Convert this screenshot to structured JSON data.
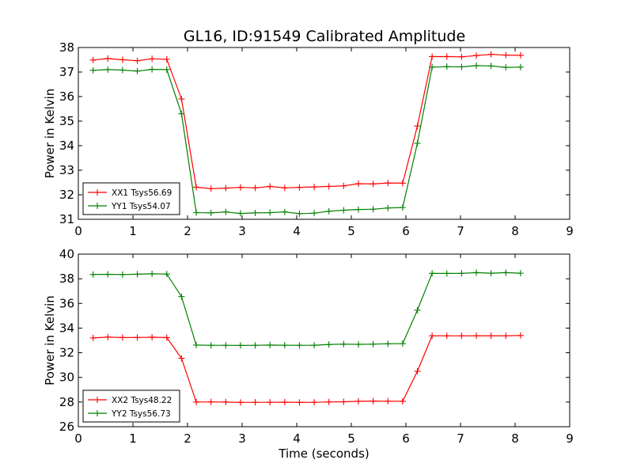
{
  "figure": {
    "title": "GL16, ID:91549 Calibrated Amplitude"
  },
  "chart_data": [
    {
      "type": "line",
      "title": "GL16, ID:91549 Calibrated Amplitude",
      "xlabel": "",
      "ylabel": "Power in Kelvin",
      "xlim": [
        0,
        9
      ],
      "ylim": [
        31,
        38
      ],
      "xticks": [
        0,
        1,
        2,
        3,
        4,
        5,
        6,
        7,
        8,
        9
      ],
      "yticks": [
        31,
        32,
        33,
        34,
        35,
        36,
        37,
        38
      ],
      "grid": false,
      "legend_position": "lower-left",
      "x": [
        0.27,
        0.54,
        0.81,
        1.08,
        1.35,
        1.62,
        1.89,
        2.16,
        2.43,
        2.7,
        2.97,
        3.24,
        3.51,
        3.78,
        4.05,
        4.32,
        4.59,
        4.86,
        5.13,
        5.4,
        5.67,
        5.94,
        6.21,
        6.48,
        6.75,
        7.02,
        7.29,
        7.56,
        7.83,
        8.1
      ],
      "series": [
        {
          "name": "XX1 Tsys56.69",
          "color": "#ff0000",
          "values": [
            37.49,
            37.55,
            37.5,
            37.46,
            37.54,
            37.52,
            35.9,
            32.31,
            32.25,
            32.27,
            32.3,
            32.28,
            32.34,
            32.28,
            32.3,
            32.32,
            32.34,
            32.36,
            32.45,
            32.44,
            32.48,
            32.47,
            34.8,
            37.63,
            37.63,
            37.62,
            37.67,
            37.72,
            37.69,
            37.68
          ]
        },
        {
          "name": "YY1 Tsys54.07",
          "color": "#008000",
          "values": [
            37.07,
            37.1,
            37.08,
            37.04,
            37.11,
            37.1,
            35.3,
            31.27,
            31.26,
            31.3,
            31.24,
            31.26,
            31.27,
            31.3,
            31.23,
            31.25,
            31.33,
            31.37,
            31.4,
            31.41,
            31.46,
            31.48,
            34.1,
            37.2,
            37.22,
            37.21,
            37.26,
            37.25,
            37.19,
            37.2
          ]
        }
      ]
    },
    {
      "type": "line",
      "xlabel": "Time (seconds)",
      "ylabel": "Power in Kelvin",
      "xlim": [
        0,
        9
      ],
      "ylim": [
        26,
        40
      ],
      "xticks": [
        0,
        1,
        2,
        3,
        4,
        5,
        6,
        7,
        8,
        9
      ],
      "yticks": [
        26,
        28,
        30,
        32,
        34,
        36,
        38,
        40
      ],
      "grid": false,
      "legend_position": "lower-left",
      "x": [
        0.27,
        0.54,
        0.81,
        1.08,
        1.35,
        1.62,
        1.89,
        2.16,
        2.43,
        2.7,
        2.97,
        3.24,
        3.51,
        3.78,
        4.05,
        4.32,
        4.59,
        4.86,
        5.13,
        5.4,
        5.67,
        5.94,
        6.21,
        6.48,
        6.75,
        7.02,
        7.29,
        7.56,
        7.83,
        8.1
      ],
      "series": [
        {
          "name": "XX2 Tsys48.22",
          "color": "#ff0000",
          "values": [
            33.2,
            33.27,
            33.23,
            33.24,
            33.26,
            33.23,
            31.55,
            28.0,
            28.01,
            28.0,
            27.97,
            27.98,
            27.98,
            27.99,
            27.97,
            27.98,
            28.01,
            28.02,
            28.06,
            28.08,
            28.07,
            28.06,
            30.5,
            33.38,
            33.37,
            33.37,
            33.38,
            33.38,
            33.38,
            33.4
          ]
        },
        {
          "name": "YY2 Tsys56.73",
          "color": "#008000",
          "values": [
            38.35,
            38.36,
            38.34,
            38.37,
            38.4,
            38.38,
            36.55,
            32.62,
            32.6,
            32.6,
            32.59,
            32.6,
            32.62,
            32.61,
            32.6,
            32.61,
            32.67,
            32.7,
            32.68,
            32.7,
            32.73,
            32.74,
            35.45,
            38.44,
            38.43,
            38.44,
            38.5,
            38.45,
            38.5,
            38.45
          ]
        }
      ]
    }
  ]
}
